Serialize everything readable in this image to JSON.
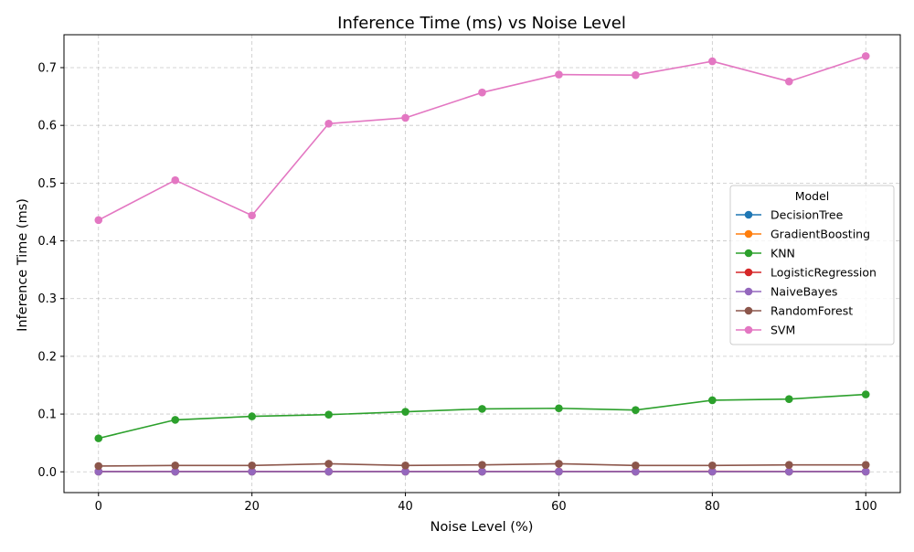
{
  "chart_data": {
    "type": "line",
    "title": "Inference Time (ms) vs Noise Level",
    "xlabel": "Noise Level (%)",
    "ylabel": "Inference Time (ms)",
    "x": [
      0,
      10,
      20,
      30,
      40,
      50,
      60,
      70,
      80,
      90,
      100
    ],
    "xlim": [
      -4.5,
      104.5
    ],
    "ylim": [
      -0.036,
      0.757
    ],
    "xticks": [
      0,
      20,
      40,
      60,
      80,
      100
    ],
    "yticks": [
      0.0,
      0.1,
      0.2,
      0.3,
      0.4,
      0.5,
      0.6,
      0.7
    ],
    "ytick_labels": [
      "0.0",
      "0.1",
      "0.2",
      "0.3",
      "0.4",
      "0.5",
      "0.6",
      "0.7"
    ],
    "grid": true,
    "legend_title": "Model",
    "legend_position": "center-right",
    "series": [
      {
        "name": "DecisionTree",
        "color": "#1f77b4",
        "values": [
          0.0003,
          0.0003,
          0.0003,
          0.0003,
          0.0003,
          0.0003,
          0.0003,
          0.0003,
          0.0003,
          0.0003,
          0.0003
        ]
      },
      {
        "name": "GradientBoosting",
        "color": "#ff7f0e",
        "values": [
          0.0008,
          0.0008,
          0.0008,
          0.0008,
          0.0008,
          0.0008,
          0.0008,
          0.0008,
          0.0009,
          0.0008,
          0.0008
        ]
      },
      {
        "name": "KNN",
        "color": "#2ca02c",
        "values": [
          0.058,
          0.09,
          0.096,
          0.099,
          0.104,
          0.109,
          0.11,
          0.107,
          0.124,
          0.126,
          0.134
        ]
      },
      {
        "name": "LogisticRegression",
        "color": "#d62728",
        "values": [
          0.0004,
          0.0004,
          0.0004,
          0.0004,
          0.0004,
          0.0004,
          0.0004,
          0.0004,
          0.0004,
          0.0004,
          0.0004
        ]
      },
      {
        "name": "NaiveBayes",
        "color": "#9467bd",
        "values": [
          0.0006,
          0.0006,
          0.0006,
          0.0006,
          0.0006,
          0.0006,
          0.0006,
          0.0006,
          0.0006,
          0.0006,
          0.0006
        ]
      },
      {
        "name": "RandomForest",
        "color": "#8c564b",
        "values": [
          0.01,
          0.011,
          0.011,
          0.014,
          0.011,
          0.012,
          0.014,
          0.011,
          0.011,
          0.012,
          0.012
        ]
      },
      {
        "name": "SVM",
        "color": "#e377c2",
        "values": [
          0.436,
          0.505,
          0.444,
          0.603,
          0.613,
          0.657,
          0.688,
          0.687,
          0.711,
          0.676,
          0.72
        ]
      }
    ]
  }
}
